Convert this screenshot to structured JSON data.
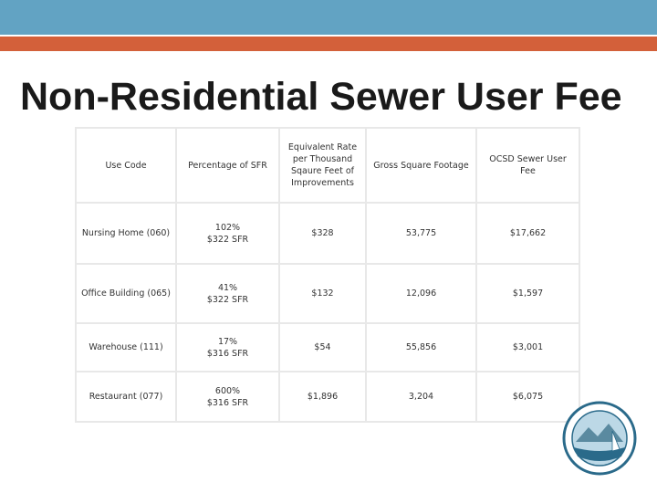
{
  "header": {
    "title": "Non-Residential Sewer User Fee"
  },
  "table": {
    "columns": [
      "Use Code",
      "Percentage of SFR",
      "Equivalent Rate per Thousand Sqaure Feet of Improvements",
      "Gross Square Footage",
      "OCSD Sewer User Fee"
    ],
    "rows": [
      [
        "Nursing Home (060)",
        [
          "102%",
          "$322 SFR"
        ],
        "$328",
        "53,775",
        "$17,662"
      ],
      [
        "Office Building (065)",
        [
          "41%",
          "$322 SFR"
        ],
        "$132",
        "12,096",
        "$1,597"
      ],
      [
        "Warehouse (111)",
        [
          "17%",
          "$316 SFR"
        ],
        "$54",
        "55,856",
        "$3,001"
      ],
      [
        "Restaurant (077)",
        [
          "600%",
          "$316 SFR"
        ],
        "$1,896",
        "3,204",
        "$6,075"
      ]
    ]
  }
}
